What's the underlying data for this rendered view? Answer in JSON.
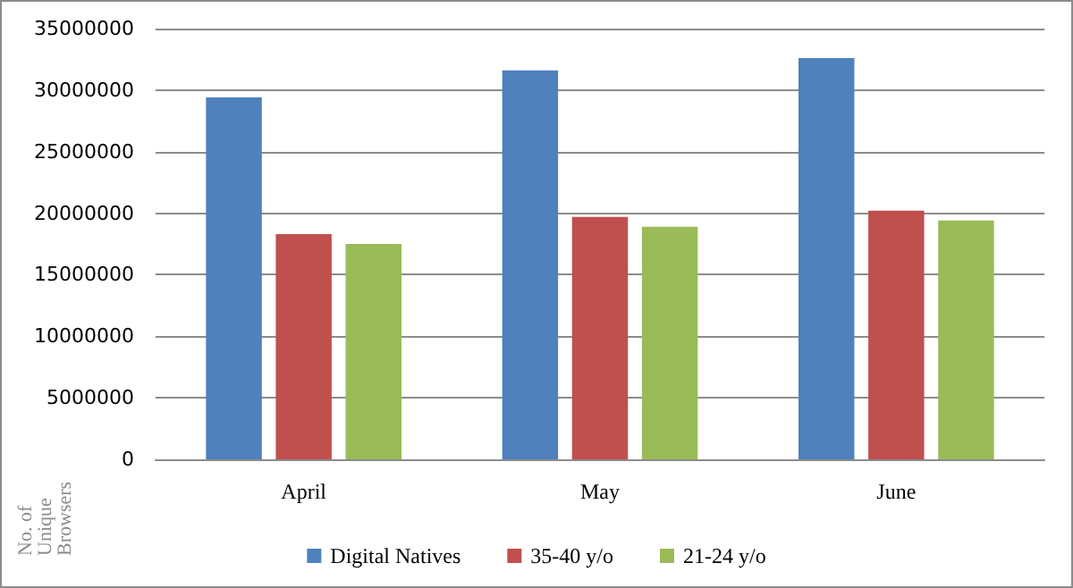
{
  "chart_data": {
    "type": "bar",
    "ylabel": "No. of Unique Browsers",
    "categories": [
      "April",
      "May",
      "June"
    ],
    "series": [
      {
        "name": "Digital Natives",
        "color": "#4f81bd",
        "values": [
          29400000,
          31600000,
          32600000
        ]
      },
      {
        "name": "35-40 y/o",
        "color": "#c0504d",
        "values": [
          18300000,
          19700000,
          20200000
        ]
      },
      {
        "name": "21-24 y/o",
        "color": "#9bbb59",
        "values": [
          17500000,
          18900000,
          19400000
        ]
      }
    ],
    "ylim": [
      0,
      35000000
    ],
    "yticks": [
      0,
      5000000,
      10000000,
      15000000,
      20000000,
      25000000,
      30000000,
      35000000
    ],
    "grid": "y",
    "legend": "bottom"
  }
}
